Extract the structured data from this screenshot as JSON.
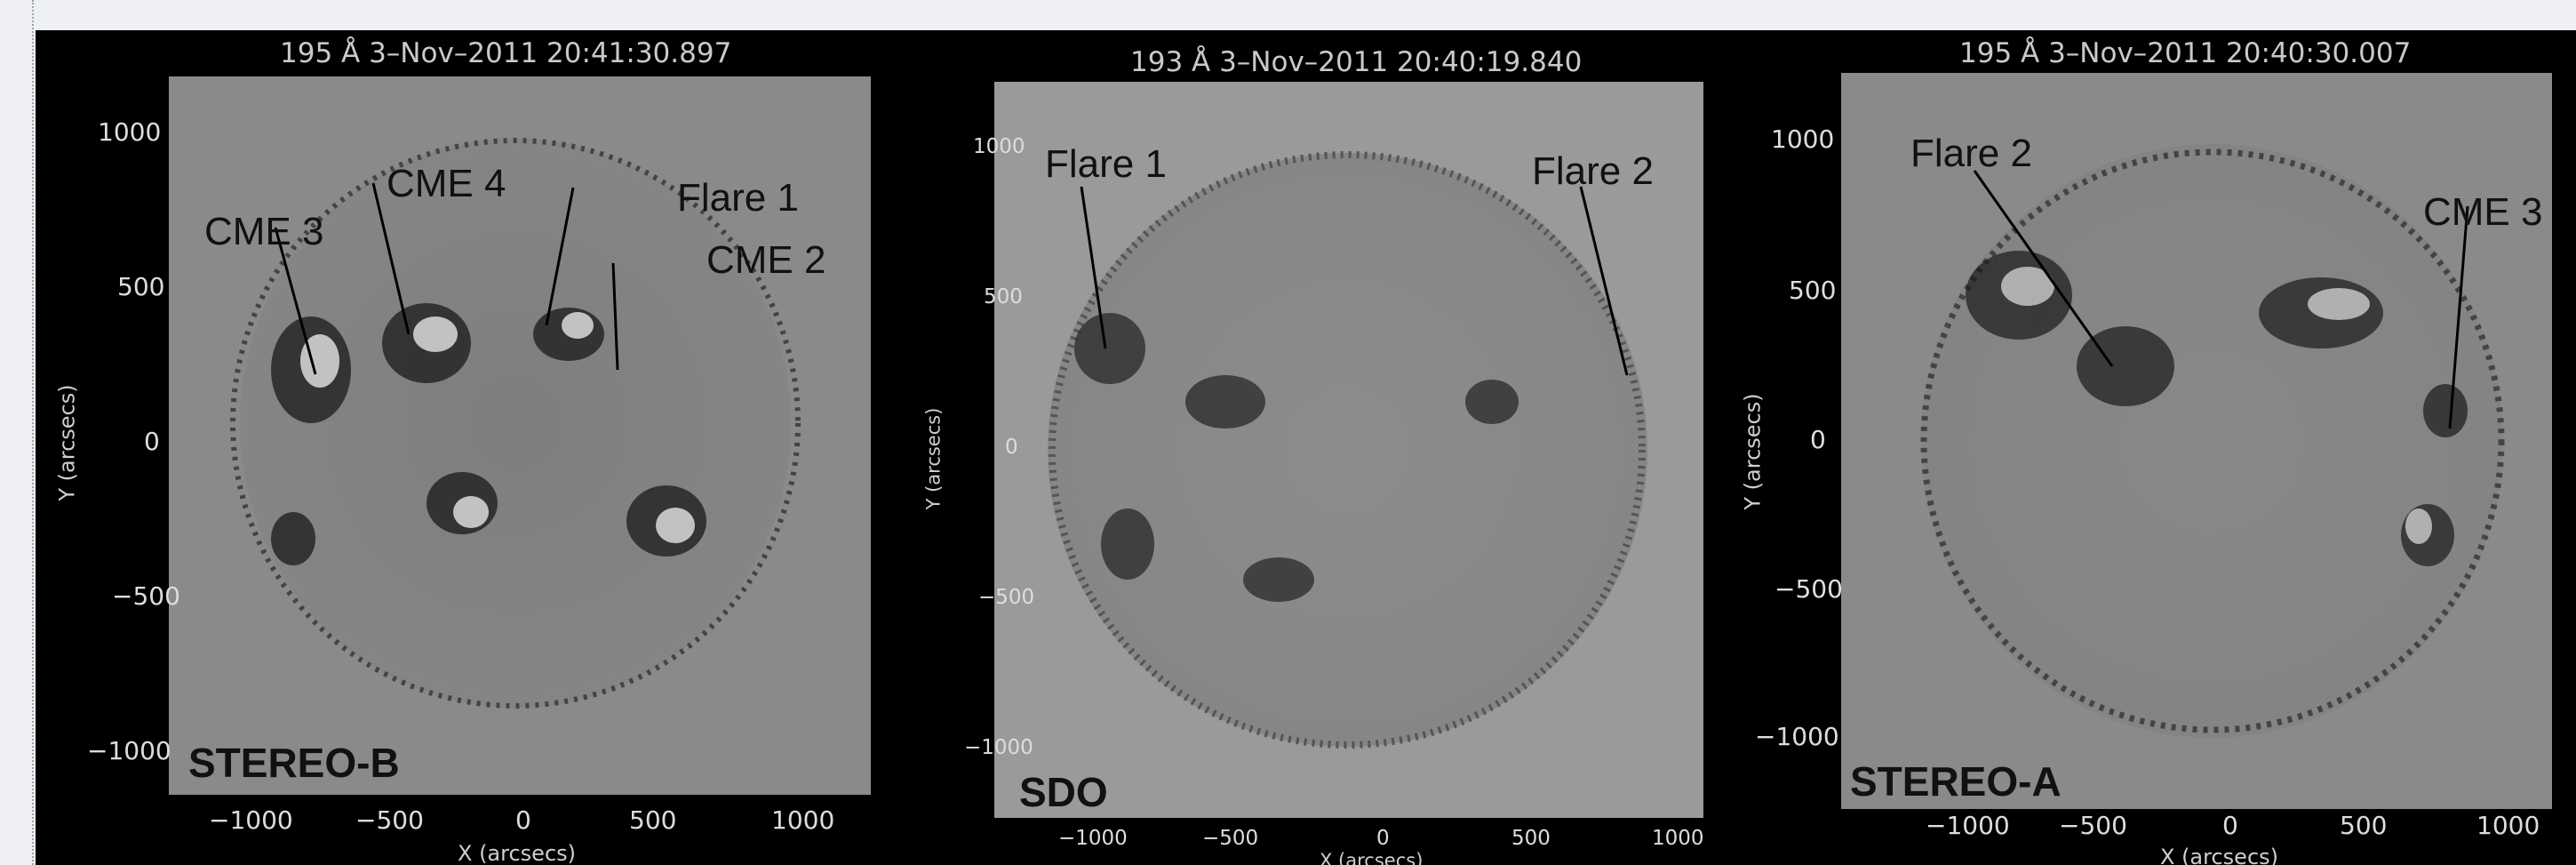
{
  "panels": [
    {
      "title": "195 Å  3–Nov–2011 20:41:30.897",
      "instrument": "STEREO-B",
      "xlabel": "X (arcsecs)",
      "ylabel": "Y (arcsecs)",
      "xticks": [
        "−1000",
        "−500",
        "0",
        "500",
        "1000"
      ],
      "yticks": [
        "1000",
        "500",
        "0",
        "−500",
        "−1000"
      ],
      "annotations": [
        "CME 3",
        "CME 4",
        "Flare 1",
        "CME 2"
      ]
    },
    {
      "title": "193 Å  3–Nov–2011 20:40:19.840",
      "instrument": "SDO",
      "xlabel": "X (arcsecs)",
      "ylabel": "Y (arcsecs)",
      "xticks": [
        "−1000",
        "−500",
        "0",
        "500",
        "1000"
      ],
      "yticks": [
        "1000",
        "500",
        "0",
        "−500",
        "−1000"
      ],
      "annotations": [
        "Flare 1",
        "Flare 2"
      ]
    },
    {
      "title": "195 Å  3–Nov–2011 20:40:30.007",
      "instrument": "STEREO-A",
      "xlabel": "X (arcsecs)",
      "ylabel": "Y (arcsecs)",
      "xticks": [
        "−1000",
        "−500",
        "0",
        "500",
        "1000"
      ],
      "yticks": [
        "1000",
        "500",
        "0",
        "−500",
        "−1000"
      ],
      "annotations": [
        "Flare 2",
        "CME 3"
      ]
    }
  ],
  "colors": {
    "background": "#000000",
    "plot_gray": "#8a8a8a",
    "text_light": "#cccccc",
    "annotation": "#111111"
  }
}
